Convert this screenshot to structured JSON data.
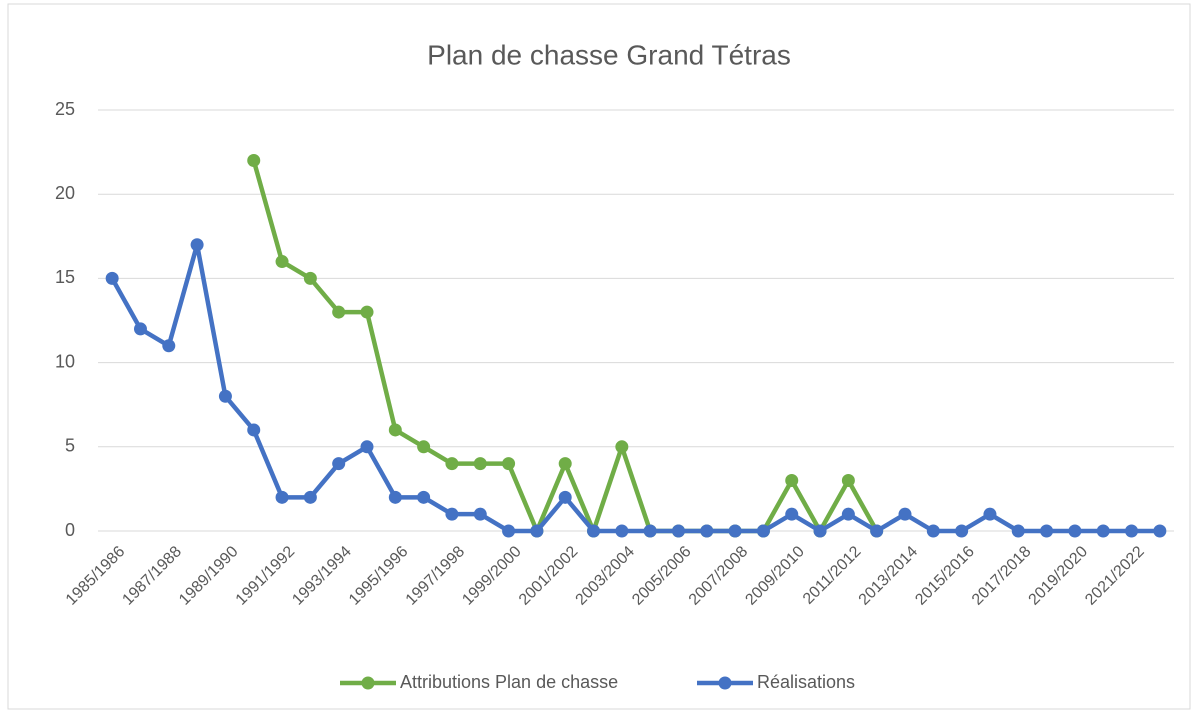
{
  "chart_data": {
    "type": "line",
    "title": "Plan de chasse Grand Tétras",
    "categories": [
      "1985/1986",
      null,
      "1987/1988",
      null,
      "1989/1990",
      null,
      "1991/1992",
      null,
      "1993/1994",
      null,
      "1995/1996",
      null,
      "1997/1998",
      null,
      "1999/2000",
      null,
      "2001/2002",
      null,
      "2003/2004",
      null,
      "2005/2006",
      null,
      "2007/2008",
      null,
      "2009/2010",
      null,
      "2011/2012",
      null,
      "2013/2014",
      null,
      "2015/2016",
      null,
      "2017/2018",
      null,
      "2019/2020",
      null,
      "2021/2022",
      null
    ],
    "series": [
      {
        "name": "Attributions Plan de chasse",
        "color": "#70ad47",
        "values": [
          null,
          null,
          null,
          null,
          null,
          22,
          16,
          15,
          13,
          13,
          6,
          5,
          4,
          4,
          4,
          0,
          4,
          0,
          5,
          0,
          0,
          0,
          0,
          0,
          3,
          0,
          3,
          0,
          null,
          null,
          null,
          null,
          null,
          null,
          null,
          null,
          null,
          null
        ]
      },
      {
        "name": "Réalisations",
        "color": "#4472c4",
        "values": [
          15,
          12,
          11,
          17,
          8,
          6,
          2,
          2,
          4,
          5,
          2,
          2,
          1,
          1,
          0,
          0,
          2,
          0,
          0,
          0,
          0,
          0,
          0,
          0,
          1,
          0,
          1,
          0,
          1,
          0,
          0,
          1,
          0,
          0,
          0,
          0,
          0,
          0
        ]
      }
    ],
    "ylim": [
      0,
      25
    ],
    "yticks": [
      0,
      5,
      10,
      15,
      20,
      25
    ],
    "grid": true,
    "legend": "bottom"
  }
}
